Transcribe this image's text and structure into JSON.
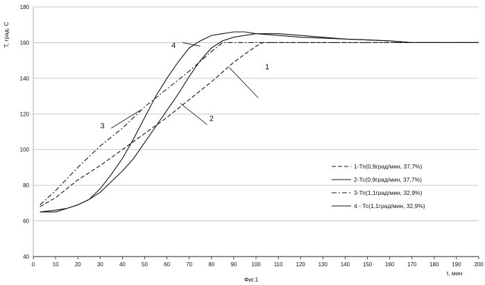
{
  "chart_data": {
    "type": "line",
    "title": "",
    "xlabel": "t, мин",
    "ylabel": "T, град. С",
    "caption": "Фиг.1",
    "xlim": [
      0,
      200
    ],
    "ylim": [
      40,
      180
    ],
    "xticks": [
      "0",
      "10",
      "20",
      "30",
      "40",
      "50",
      "60",
      "70",
      "80",
      "90",
      "100",
      "110",
      "120",
      "130",
      "140",
      "150",
      "160",
      "170",
      "180",
      "190",
      "200"
    ],
    "yticks": [
      "40",
      "60",
      "80",
      "100",
      "120",
      "140",
      "160",
      "180"
    ],
    "grid": "horizontal",
    "legend_placement": "right",
    "series": [
      {
        "name": "1-Тп(0,9град/мин, 37,7%)",
        "style": "dashed",
        "label": "1",
        "x": [
          3,
          10,
          20,
          30,
          40,
          50,
          60,
          70,
          80,
          90,
          100,
          103,
          110,
          150,
          200
        ],
        "y": [
          68,
          73,
          83,
          91,
          100,
          109,
          118,
          128,
          138,
          149,
          158,
          160,
          160,
          160,
          160
        ]
      },
      {
        "name": "2-Тс(0,9град/мин, 37,7%)",
        "style": "solid",
        "label": "2",
        "x": [
          3,
          10,
          15,
          20,
          25,
          30,
          35,
          40,
          45,
          50,
          55,
          60,
          65,
          70,
          75,
          80,
          85,
          90,
          95,
          100,
          110,
          120,
          140,
          160,
          170,
          200
        ],
        "y": [
          65,
          65,
          67,
          69,
          72,
          76,
          82,
          88,
          95,
          104,
          113,
          122,
          131,
          141,
          150,
          157,
          161,
          163,
          164,
          165,
          164,
          163,
          162,
          161,
          160,
          160
        ]
      },
      {
        "name": "3-Тп(1,1град/мин, 32,9%)",
        "style": "dashdot",
        "label": "3",
        "x": [
          3,
          10,
          20,
          30,
          40,
          50,
          60,
          70,
          80,
          85,
          90,
          200
        ],
        "y": [
          69,
          77,
          90,
          102,
          112,
          124,
          134,
          144,
          155,
          160,
          160,
          160
        ]
      },
      {
        "name": "4 - Тс(1,1град/мин, 32,9%)",
        "style": "solid",
        "label": "4",
        "x": [
          3,
          10,
          15,
          20,
          25,
          30,
          35,
          40,
          45,
          50,
          55,
          60,
          65,
          70,
          75,
          80,
          85,
          90,
          95,
          100,
          110,
          120,
          130,
          140,
          160,
          170,
          200
        ],
        "y": [
          65,
          66,
          67,
          69,
          72,
          78,
          86,
          95,
          106,
          118,
          130,
          140,
          149,
          157,
          161,
          164,
          165,
          166,
          166,
          165,
          165,
          164,
          163,
          162,
          161,
          160,
          160
        ]
      }
    ]
  }
}
